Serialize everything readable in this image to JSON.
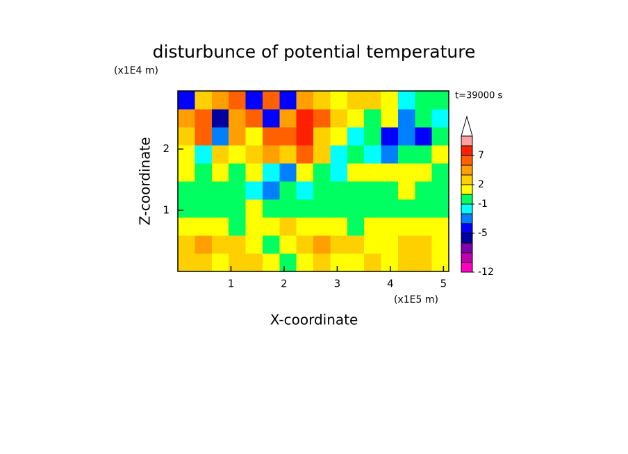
{
  "chart_data": {
    "type": "contour",
    "title": "disturbunce of potential temperature",
    "x_label": "X-coordinate",
    "y_label": "Z-coordinate",
    "x_unit": "(x1E5 m)",
    "y_unit": "(x1E4 m)",
    "time_label": "t=39000 s",
    "xlim": [
      0,
      5.1
    ],
    "ylim": [
      0,
      2.95
    ],
    "xticks": [
      1,
      2,
      3,
      4,
      5
    ],
    "yticks": [
      1,
      2
    ],
    "z": [
      [
        3,
        3,
        1.5,
        3,
        3,
        1.5,
        0,
        1.5,
        3,
        1.5,
        1.5,
        3,
        1.5,
        3,
        3,
        1.5
      ],
      [
        3,
        4,
        3,
        3,
        1.5,
        0,
        1.5,
        3,
        4,
        3,
        3,
        1.5,
        1.5,
        3,
        3,
        1.5
      ],
      [
        1.5,
        1.5,
        1.5,
        0,
        1.5,
        1.5,
        3,
        1.5,
        1.5,
        1.5,
        0,
        1.5,
        1.5,
        1.5,
        1.5,
        1.5
      ],
      [
        0,
        0,
        0,
        0,
        1.5,
        0,
        0,
        0,
        0,
        0,
        0,
        0,
        0,
        0,
        0,
        0
      ],
      [
        0,
        0,
        0,
        0,
        -1.5,
        -2.5,
        0,
        -1.5,
        0,
        0,
        0,
        0,
        0,
        1.5,
        0,
        0
      ],
      [
        1.5,
        0,
        1.5,
        0,
        1.5,
        -1.5,
        -2.5,
        1.5,
        0,
        -1.5,
        1.5,
        1.5,
        1.5,
        1.5,
        1.5,
        0
      ],
      [
        1.5,
        -1.5,
        3,
        1.5,
        3,
        4,
        3,
        6,
        3,
        -1.5,
        0,
        -1.5,
        -2.5,
        0,
        0,
        1.5
      ],
      [
        3,
        6,
        -2.5,
        4,
        1.5,
        6,
        6,
        8,
        3,
        1.5,
        -1.5,
        0,
        -4,
        -2.5,
        -4,
        0
      ],
      [
        4,
        6,
        -6,
        4,
        6,
        -4,
        4,
        8,
        6,
        3,
        1.5,
        0,
        1.5,
        -2.5,
        0,
        -1.5
      ],
      [
        -4,
        3,
        4,
        6,
        -4,
        6,
        -4,
        4,
        3,
        1.5,
        3,
        3,
        1.5,
        -1.5,
        0,
        0
      ]
    ],
    "colorbar": {
      "levels": [
        -12,
        -10,
        -8,
        -6.5,
        -5,
        -3.5,
        -2,
        -1,
        0.5,
        2,
        3.5,
        5,
        7,
        9,
        11
      ],
      "colors": [
        "#ff00c0",
        "#c000b0",
        "#8000b0",
        "#0000a0",
        "#0000ff",
        "#0080ff",
        "#00ffff",
        "#00ff60",
        "#ffff00",
        "#ffd000",
        "#ffa000",
        "#ff6000",
        "#ff2000",
        "#ffa0a0"
      ],
      "ticks": [
        7,
        2,
        -1,
        -5,
        -12
      ]
    }
  }
}
